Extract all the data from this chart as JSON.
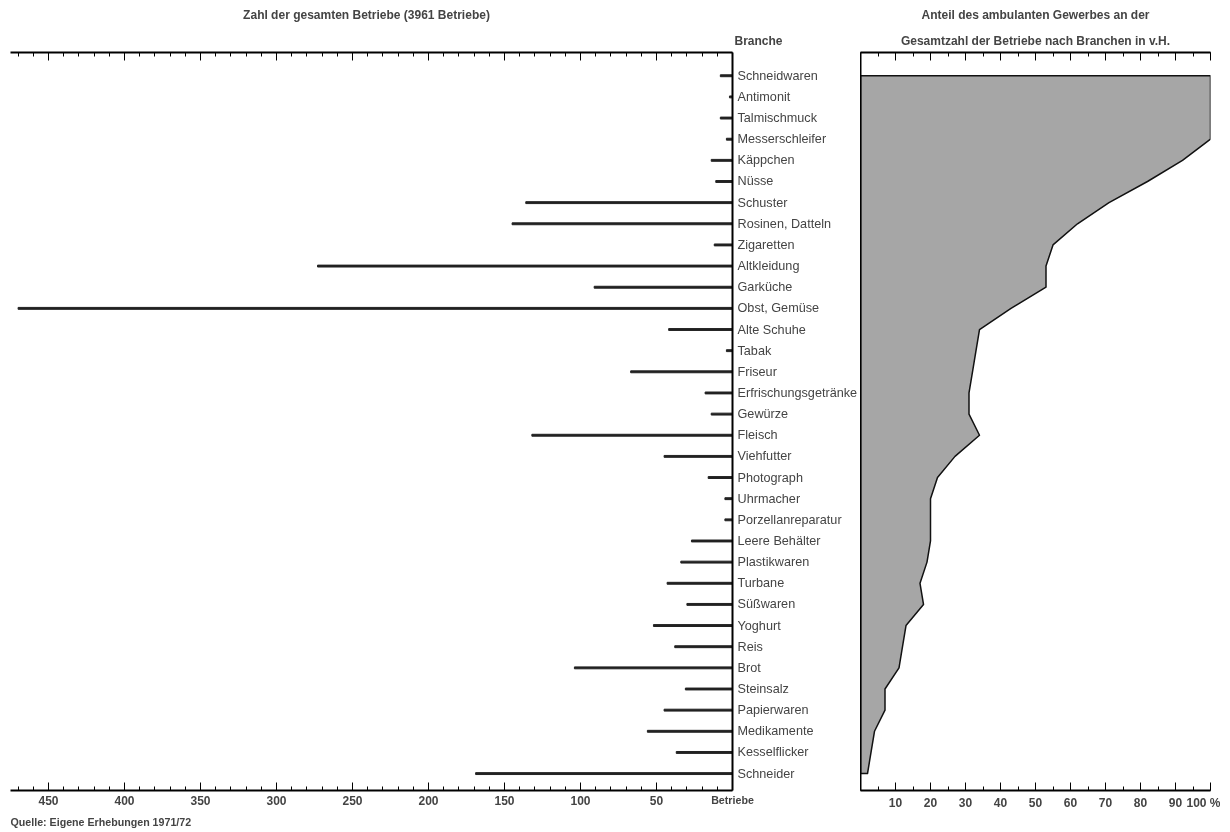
{
  "chart_data": [
    {
      "type": "bar",
      "orientation": "horizontal",
      "title": "Zahl der gesamten Betriebe    (3961 Betriebe)",
      "ylabel": "Branche",
      "xlabel": "Betriebe",
      "categories": [
        "Schneidwaren",
        "Antimonit",
        "Talmischmuck",
        "Messerschleifer",
        "Käppchen",
        "Nüsse",
        "Schuster",
        "Rosinen, Datteln",
        "Zigaretten",
        "Altkleidung",
        "Garküche",
        "Obst, Gemüse",
        "Alte Schuhe",
        "Tabak",
        "Friseur",
        "Erfrischungsgetränke",
        "Gewürze",
        "Fleisch",
        "Viehfutter",
        "Photograph",
        "Uhrmacher",
        "Porzellanreparatur",
        "Leere Behälter",
        "Plastikwaren",
        "Turbane",
        "Süßwaren",
        "Yoghurt",
        "Reis",
        "Brot",
        "Steinsalz",
        "Papierwaren",
        "Medikamente",
        "Kesselflicker",
        "Schneider"
      ],
      "values": [
        8,
        2,
        8,
        4,
        14,
        11,
        136,
        145,
        12,
        273,
        91,
        470,
        42,
        4,
        67,
        18,
        14,
        132,
        45,
        16,
        5,
        5,
        27,
        34,
        43,
        30,
        52,
        38,
        104,
        31,
        45,
        56,
        37,
        169
      ],
      "color": "#222222",
      "xlim": [
        475,
        0
      ],
      "xticks": [
        450,
        400,
        350,
        300,
        250,
        200,
        150,
        100,
        50
      ],
      "grid": false,
      "annotations": [
        "Quelle: Eigene Erhebungen 1971/72"
      ]
    },
    {
      "type": "area",
      "orientation": "horizontal",
      "title": "Anteil des ambulanten Gewerbes an der",
      "subtitle": "Gesamtzahl der Betriebe nach Branchen in v.H.",
      "categories": [
        null,
        null,
        null,
        null,
        null,
        null,
        null,
        null,
        null,
        null,
        null,
        null,
        null,
        null,
        null,
        null,
        null,
        null,
        null,
        null,
        null,
        null,
        null,
        null,
        null,
        null,
        null,
        null,
        null,
        null,
        null,
        null,
        null,
        null
      ],
      "values": [
        100,
        100,
        100,
        100,
        92,
        82,
        71,
        62,
        55,
        53,
        53,
        43,
        34,
        33,
        32,
        31,
        31,
        34,
        27,
        22,
        20,
        20,
        20,
        19,
        17,
        18,
        13,
        12,
        11,
        7,
        7,
        4,
        3,
        2
      ],
      "color": "#a6a6a6",
      "xlim": [
        0,
        100
      ],
      "xticks": [
        10,
        20,
        30,
        40,
        50,
        60,
        70,
        80,
        90,
        {
          "value": 100,
          "label": "100 %"
        }
      ],
      "grid": false
    }
  ]
}
